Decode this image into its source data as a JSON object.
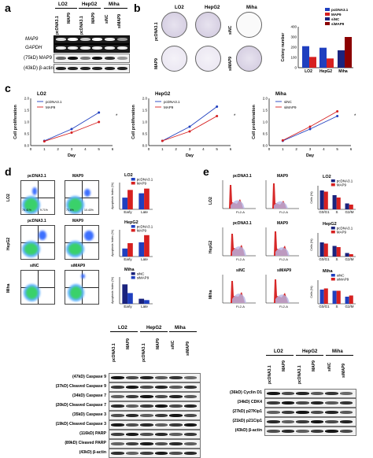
{
  "panels": {
    "a": "a",
    "b": "b",
    "c": "c",
    "d": "d",
    "e": "e"
  },
  "panel_a": {
    "groups": [
      "LO2",
      "HepG2",
      "Miha"
    ],
    "lanes": [
      "pcDNA3.1",
      "MAP9",
      "pcDNA3.1",
      "MAP9",
      "siNC",
      "siMAP9"
    ],
    "rows": [
      "MAP9",
      "GAPDH",
      "(75kD) MAP9",
      "(43kD) β-actin"
    ]
  },
  "panel_b": {
    "dish_labels": [
      "LO2",
      "HepG2",
      "Miha"
    ],
    "side_labels": [
      "pcDNA3.1",
      "MAP9",
      "siNC",
      "siMAP9"
    ],
    "legend": [
      "pcDNA3.1",
      "MAP9",
      "siNC",
      "siMAP9"
    ],
    "ylabel": "Colony number",
    "yticks": [
      "0",
      "100",
      "200",
      "300",
      "400"
    ],
    "xticks": [
      "LO2",
      "HepG2",
      "Miha"
    ]
  },
  "panel_c": {
    "titles": [
      "LO2",
      "HepG2",
      "Miha"
    ],
    "ylabel": "Cell proliferation",
    "xlabel": "Day",
    "xticks": [
      "0",
      "1",
      "2",
      "3",
      "4",
      "5",
      "6"
    ],
    "yticks": [
      "0.0",
      "0.5",
      "1.0",
      "1.5",
      "2.0"
    ],
    "legends": [
      [
        "pcDNA3.1",
        "MAP9"
      ],
      [
        "pcDNA3.1",
        "MAP9"
      ],
      [
        "siNC",
        "siMAP9"
      ]
    ]
  },
  "panel_d": {
    "col_labels": [
      [
        "pcDNA3.1",
        "MAP9"
      ],
      [
        "pcDNA3.1",
        "MAP9"
      ],
      [
        "siNC",
        "siMAP9"
      ]
    ],
    "row_labels": [
      "LO2",
      "HepG2",
      "Miha"
    ],
    "quad_values": [
      "76.41%",
      "9.71%",
      "71.6%",
      "10.43%"
    ],
    "bar_titles": [
      "LO2",
      "HepG2",
      "Miha"
    ],
    "bar_ylabel": "Apoptosis Index (%)",
    "bar_xticks": [
      "Early",
      "Late"
    ],
    "legends": [
      [
        "pcDNA3.1",
        "MAP9"
      ],
      [
        "pcDNA3.1",
        "MAP9"
      ],
      [
        "siNC",
        "siMAP9"
      ]
    ]
  },
  "panel_e": {
    "col_labels": [
      [
        "pcDNA3.1",
        "MAP9"
      ],
      [
        "pcDNA3.1",
        "MAP9"
      ],
      [
        "siNC",
        "siMAP9"
      ]
    ],
    "row_labels": [
      "LO2",
      "HepG2",
      "Miha"
    ],
    "hist_xlabel": "FL2-A",
    "hist_ylabel": "Number",
    "bar_titles": [
      "LO2",
      "HepG2",
      "Miha"
    ],
    "bar_ylabel": "Cells (%)",
    "bar_xticks": [
      "G0/G1",
      "S",
      "G2/M"
    ],
    "legends": [
      [
        "pcDNA3.1",
        "MAP9"
      ],
      [
        "pcDNA3.1",
        "MAP9"
      ],
      [
        "siNC",
        "siMAP9"
      ]
    ]
  },
  "blot_f": {
    "groups": [
      "LO2",
      "HepG2",
      "Miha"
    ],
    "lanes": [
      "pcDNA3.1",
      "MAP9",
      "pcDNA3.1",
      "MAP9",
      "siNC",
      "siMAP9"
    ],
    "rows": [
      "(47kD) Caspase 9",
      "(37kD) Cleaved Caspase 9",
      "(34kD) Caspase 7",
      "(20kD) Cleaved Caspase 7",
      "(35kD) Caspase 3",
      "(19kD) Cleaved Caspase 3",
      "(116kD) PARP",
      "(89kD) Cleaved PARP",
      "(43kD) β-actin"
    ]
  },
  "blot_g": {
    "groups": [
      "LO2",
      "HepG2",
      "Miha"
    ],
    "lanes": [
      "pcDNA3.1",
      "MAP9",
      "pcDNA3.1",
      "MAP9",
      "siNC",
      "siMAP9"
    ],
    "rows": [
      "(36kD) Cyclin D1",
      "(34kD) CDK4",
      "(27kD) p27Kip1",
      "(21kD) p21Cip1",
      "(43kD) β-actin"
    ]
  },
  "colors": {
    "blue": "#1f3fbf",
    "red": "#d62020",
    "darkblue": "#1a237e",
    "darkred": "#8b0000"
  },
  "chart_data": [
    {
      "type": "bar",
      "title": "",
      "ylabel": "Colony number",
      "categories": [
        "LO2",
        "HepG2",
        "Miha"
      ],
      "ylim": [
        0,
        400
      ],
      "series": [
        {
          "name": "pcDNA3.1",
          "values": [
            210,
            195,
            null
          ]
        },
        {
          "name": "MAP9",
          "values": [
            105,
            90,
            null
          ]
        },
        {
          "name": "siNC",
          "values": [
            null,
            null,
            170
          ]
        },
        {
          "name": "siMAP9",
          "values": [
            null,
            null,
            300
          ]
        }
      ]
    },
    {
      "type": "line",
      "title": "LO2",
      "xlabel": "Day",
      "ylabel": "Cell proliferation",
      "x": [
        1,
        3,
        5
      ],
      "ylim": [
        0,
        2
      ],
      "series": [
        {
          "name": "pcDNA3.1",
          "values": [
            0.2,
            0.7,
            1.4
          ]
        },
        {
          "name": "MAP9",
          "values": [
            0.18,
            0.55,
            1.0
          ]
        }
      ]
    },
    {
      "type": "line",
      "title": "HepG2",
      "xlabel": "Day",
      "ylabel": "Cell proliferation",
      "x": [
        1,
        3,
        5
      ],
      "ylim": [
        0,
        2
      ],
      "series": [
        {
          "name": "pcDNA3.1",
          "values": [
            0.2,
            0.8,
            1.65
          ]
        },
        {
          "name": "MAP9",
          "values": [
            0.2,
            0.6,
            1.25
          ]
        }
      ]
    },
    {
      "type": "line",
      "title": "Miha",
      "xlabel": "Day",
      "ylabel": "Cell proliferation",
      "x": [
        1,
        3,
        5
      ],
      "ylim": [
        0,
        2
      ],
      "series": [
        {
          "name": "siNC",
          "values": [
            0.2,
            0.7,
            1.25
          ]
        },
        {
          "name": "siMAP9",
          "values": [
            0.22,
            0.8,
            1.45
          ]
        }
      ]
    },
    {
      "type": "bar",
      "title": "LO2",
      "ylabel": "Apoptosis Index (%)",
      "categories": [
        "Early",
        "Late"
      ],
      "ylim": [
        0,
        8
      ],
      "series": [
        {
          "name": "pcDNA3.1",
          "values": [
            3.5,
            4.8
          ]
        },
        {
          "name": "MAP9",
          "values": [
            5.8,
            6.2
          ]
        }
      ]
    },
    {
      "type": "bar",
      "title": "HepG2",
      "ylabel": "Apoptosis Index (%)",
      "categories": [
        "Early",
        "Late"
      ],
      "ylim": [
        0,
        15
      ],
      "series": [
        {
          "name": "pcDNA3.1",
          "values": [
            4.5,
            8.0
          ]
        },
        {
          "name": "MAP9",
          "values": [
            7.5,
            12.0
          ]
        }
      ]
    },
    {
      "type": "bar",
      "title": "Miha",
      "ylabel": "Apoptosis Index (%)",
      "categories": [
        "Early",
        "Late"
      ],
      "ylim": [
        0,
        8
      ],
      "series": [
        {
          "name": "siNC",
          "values": [
            5.8,
            1.5
          ]
        },
        {
          "name": "siMAP9",
          "values": [
            3.2,
            1.1
          ]
        }
      ]
    },
    {
      "type": "bar",
      "title": "LO2",
      "ylabel": "Cells (%)",
      "categories": [
        "G0/G1",
        "S",
        "G2/M"
      ],
      "ylim": [
        0,
        100
      ],
      "series": [
        {
          "name": "pcDNA3.1",
          "values": [
            80,
            60,
            25
          ]
        },
        {
          "name": "MAP9",
          "values": [
            75,
            50,
            20
          ]
        }
      ]
    },
    {
      "type": "bar",
      "title": "HepG2",
      "ylabel": "Cells (%)",
      "categories": [
        "G0/G1",
        "S",
        "G2/M"
      ],
      "ylim": [
        0,
        100
      ],
      "series": [
        {
          "name": "pcDNA3.1",
          "values": [
            60,
            45,
            15
          ]
        },
        {
          "name": "MAP9",
          "values": [
            55,
            40,
            10
          ]
        }
      ]
    },
    {
      "type": "bar",
      "title": "Miha",
      "ylabel": "Cells (%)",
      "categories": [
        "G0/G1",
        "S",
        "G2/M"
      ],
      "ylim": [
        0,
        100
      ],
      "series": [
        {
          "name": "siNC",
          "values": [
            60,
            55,
            30
          ]
        },
        {
          "name": "siMAP9",
          "values": [
            65,
            55,
            35
          ]
        }
      ]
    }
  ]
}
